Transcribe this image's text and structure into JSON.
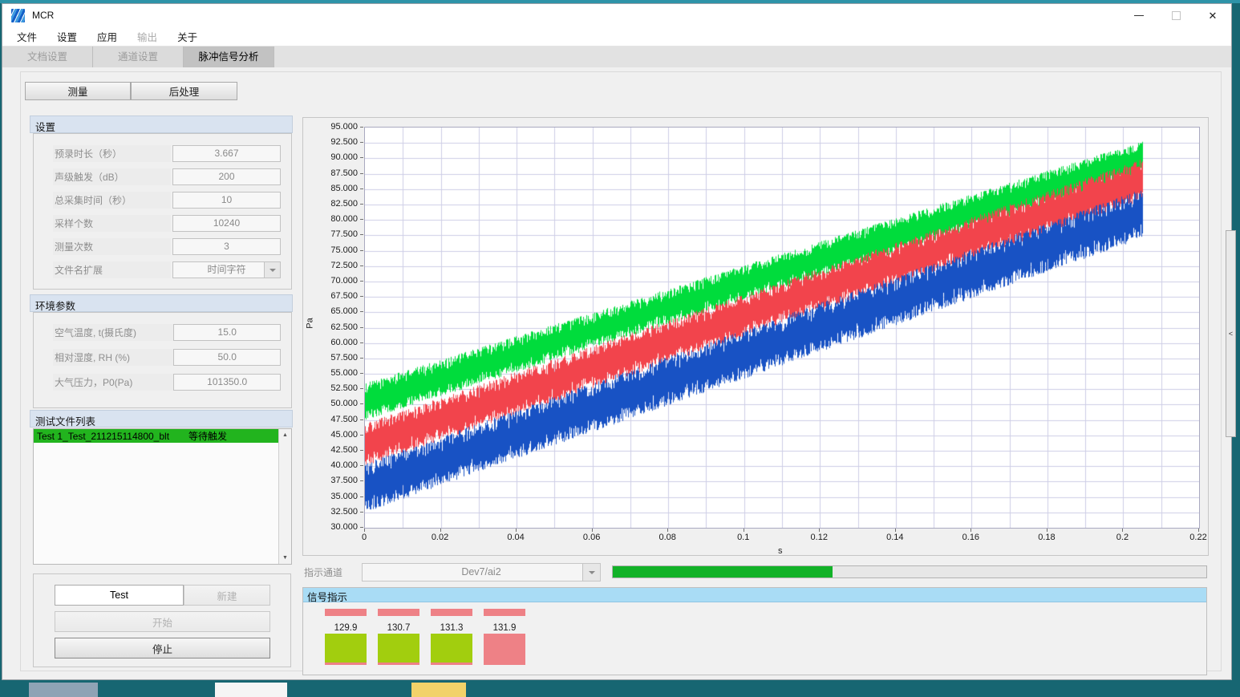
{
  "window": {
    "title": "MCR"
  },
  "menu_bar": {
    "items": [
      {
        "label": "文件",
        "enabled": true
      },
      {
        "label": "设置",
        "enabled": true
      },
      {
        "label": "应用",
        "enabled": true
      },
      {
        "label": "输出",
        "enabled": false
      },
      {
        "label": "关于",
        "enabled": true
      }
    ]
  },
  "tab_bar": {
    "tabs": [
      {
        "label": "文档设置",
        "active": false
      },
      {
        "label": "通道设置",
        "active": false
      },
      {
        "label": "脉冲信号分析",
        "active": true
      }
    ]
  },
  "left_panel": {
    "mode_buttons": [
      {
        "label": "测量"
      },
      {
        "label": "后处理"
      }
    ],
    "settings_group": {
      "header": "设置",
      "fields": [
        {
          "label": "预录时长（秒）",
          "value": "3.667",
          "type": "input"
        },
        {
          "label": "声级触发（dB）",
          "value": "200",
          "type": "input"
        },
        {
          "label": "总采集时间（秒）",
          "value": "10",
          "type": "input"
        },
        {
          "label": "采样个数",
          "value": "10240",
          "type": "input"
        },
        {
          "label": "测量次数",
          "value": "3",
          "type": "input"
        },
        {
          "label": "文件名扩展",
          "value": "时间字符",
          "type": "dropdown"
        }
      ]
    },
    "environment_group": {
      "header": "环境参数",
      "fields": [
        {
          "label": "空气温度, t(摄氏度)",
          "value": "15.0",
          "type": "input"
        },
        {
          "label": "相对湿度, RH (%)",
          "value": "50.0",
          "type": "input"
        },
        {
          "label": "大气压力，P0(Pa)",
          "value": "101350.0",
          "type": "input"
        }
      ]
    },
    "file_list_group": {
      "header": "测试文件列表",
      "items": [
        {
          "name": "Test 1_Test_211215114800_blt",
          "status": "等待触发",
          "highlight": "#22B41E"
        }
      ]
    },
    "control_box": {
      "test_name_value": "Test",
      "new_button": "新建",
      "start_button": "开始",
      "stop_button": "停止"
    }
  },
  "chart_data": {
    "type": "area",
    "title": "",
    "xlabel": "s",
    "ylabel": "Pa",
    "xlim": [
      0,
      0.22
    ],
    "ylim": [
      30,
      95
    ],
    "x_tick_step": 0.02,
    "x_minor_grid_step": 0.01,
    "y_tick_step": 2.5,
    "y_tick_decimals": 3,
    "grid": true,
    "grid_color": "#CDCDE6",
    "description": "Three noisy rising pressure bands vs time; data ends at t = 0.205 s",
    "series": [
      {
        "name": "band-green",
        "color": "#00DC3C",
        "x_start": 0,
        "x_end": 0.205,
        "center_start": 50.5,
        "center_end": 90.0,
        "half_width_start": 3.0,
        "half_width_end": 2.8
      },
      {
        "name": "band-red",
        "color": "#F2444C",
        "x_start": 0,
        "x_end": 0.205,
        "center_start": 43.5,
        "center_end": 86.5,
        "half_width_start": 3.5,
        "half_width_end": 3.4
      },
      {
        "name": "band-blue",
        "color": "#1852C4",
        "x_start": 0,
        "x_end": 0.205,
        "center_start": 36.5,
        "center_end": 81.0,
        "half_width_start": 4.0,
        "half_width_end": 4.0
      }
    ]
  },
  "indicator_row": {
    "label": "指示通道",
    "channel": "Dev7/ai2",
    "progress_percent": 37,
    "progress_color": "#12B228"
  },
  "signal_panel": {
    "header": "信号指示",
    "ok_color": "#A2CE0E",
    "over_color": "#EE8186",
    "indicators": [
      {
        "value": "129.9",
        "state": "ok"
      },
      {
        "value": "130.7",
        "state": "ok"
      },
      {
        "value": "131.3",
        "state": "ok"
      },
      {
        "value": "131.9",
        "state": "over"
      }
    ]
  },
  "side_handle_glyph": "<"
}
